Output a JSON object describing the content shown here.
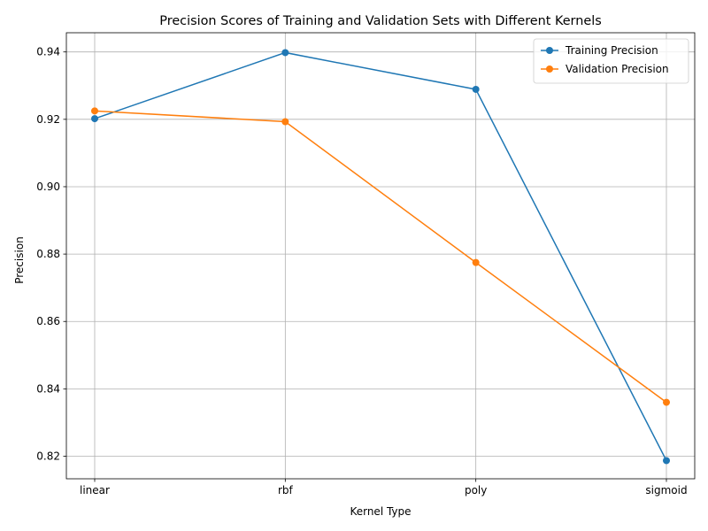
{
  "chart_data": {
    "type": "line",
    "title": "Precision Scores of Training and Validation Sets with Different Kernels",
    "xlabel": "Kernel Type",
    "ylabel": "Precision",
    "categories": [
      "linear",
      "rbf",
      "poly",
      "sigmoid"
    ],
    "yticks": [
      "0.82",
      "0.84",
      "0.86",
      "0.88",
      "0.90",
      "0.92",
      "0.94"
    ],
    "ylim": [
      0.8133,
      0.9457
    ],
    "grid": true,
    "legend_position": "upper right",
    "series": [
      {
        "name": "Training Precision",
        "color": "#1f77b4",
        "values": [
          0.9202,
          0.9398,
          0.9289,
          0.8187
        ]
      },
      {
        "name": "Validation Precision",
        "color": "#ff7f0e",
        "values": [
          0.9225,
          0.9193,
          0.8775,
          0.836
        ]
      }
    ]
  }
}
